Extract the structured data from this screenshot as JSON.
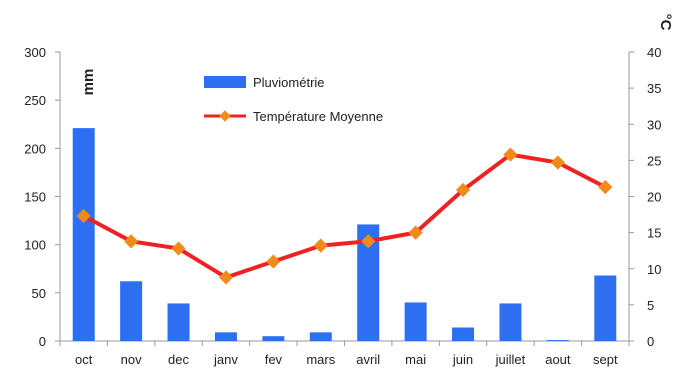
{
  "chart_data": {
    "type": "bar+line",
    "categories": [
      "oct",
      "nov",
      "dec",
      "janv",
      "fev",
      "mars",
      "avril",
      "mai",
      "juin",
      "juillet",
      "aout",
      "sept"
    ],
    "series": [
      {
        "name": "Pluviométrie",
        "type": "bar",
        "axis": "left",
        "color": "#2e6ff2",
        "values": [
          221,
          62,
          39,
          9,
          5,
          9,
          121,
          40,
          14,
          39,
          1,
          68
        ]
      },
      {
        "name": "Température Moyenne",
        "type": "line",
        "axis": "right",
        "color": "#ee2222",
        "marker_color": "#f08a1a",
        "values": [
          17.3,
          13.8,
          12.8,
          8.8,
          11.0,
          13.2,
          13.8,
          15.0,
          20.9,
          25.8,
          24.7,
          21.3
        ]
      }
    ],
    "y_left": {
      "label": "mm",
      "min": 0,
      "max": 300,
      "ticks": [
        0,
        50,
        100,
        150,
        200,
        250,
        300
      ]
    },
    "y_right": {
      "label": "°C",
      "min": 0,
      "max": 40,
      "ticks": [
        0,
        5,
        10,
        15,
        20,
        25,
        30,
        35,
        40
      ]
    },
    "grid": false,
    "legend_position": "top-center"
  }
}
